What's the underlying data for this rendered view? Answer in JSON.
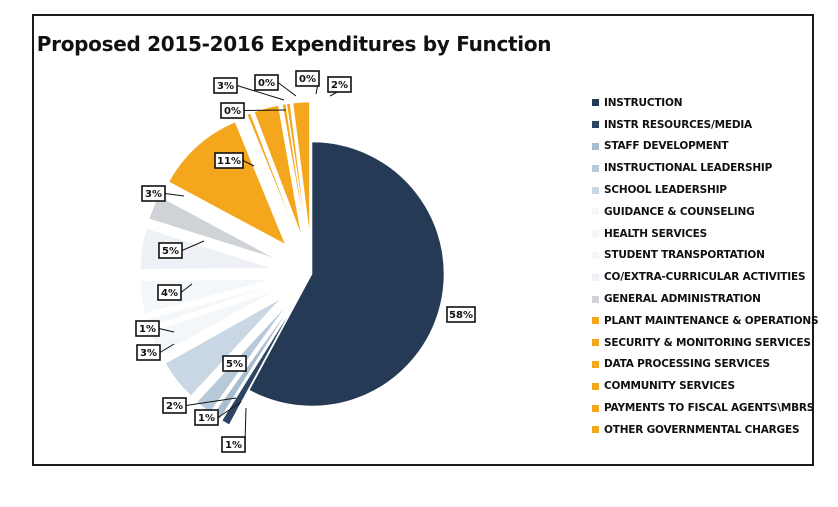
{
  "chart_data": {
    "type": "pie",
    "title": "Proposed 2015-2016 Expenditures by Function",
    "legend_position": "right",
    "slices": [
      {
        "name": "INSTRUCTION",
        "value": 58,
        "label": "58%",
        "color": "#243a55"
      },
      {
        "name": "INSTR RESOURCES/MEDIA",
        "value": 1,
        "label": "1%",
        "color": "#2c4563"
      },
      {
        "name": "STAFF DEVELOPMENT",
        "value": 1,
        "label": "1%",
        "color": "#a9bdd0"
      },
      {
        "name": "INSTRUCTIONAL LEADERSHIP",
        "value": 2,
        "label": "2%",
        "color": "#b8c9da"
      },
      {
        "name": "SCHOOL LEADERSHIP",
        "value": 5,
        "label": "5%",
        "color": "#c9d7e4"
      },
      {
        "name": "GUIDANCE & COUNSELING",
        "value": 3,
        "label": "3%",
        "color": "#f4f7fa"
      },
      {
        "name": "HEALTH SERVICES",
        "value": 1,
        "label": "1%",
        "color": "#f4f7fa"
      },
      {
        "name": "STUDENT TRANSPORTATION",
        "value": 4,
        "label": "4%",
        "color": "#f4f7fa"
      },
      {
        "name": "CO/EXTRA-CURRICULAR ACTIVITIES",
        "value": 5,
        "label": "5%",
        "color": "#eef2f6"
      },
      {
        "name": "GENERAL ADMINISTRATION",
        "value": 3,
        "label": "3%",
        "color": "#cfd3d7"
      },
      {
        "name": "PLANT MAINTENANCE & OPERATIONS",
        "value": 11,
        "label": "11%",
        "color": "#f4a71c"
      },
      {
        "name": "SECURITY & MONITORING SERVICES",
        "value": 0.4,
        "label": "0%",
        "color": "#f4a71c"
      },
      {
        "name": "DATA PROCESSING SERVICES",
        "value": 3,
        "label": "3%",
        "color": "#f4a71c"
      },
      {
        "name": "COMMUNITY SERVICES",
        "value": 0.4,
        "label": "0%",
        "color": "#f4a71c"
      },
      {
        "name": "PAYMENTS TO FISCAL AGENTS\\MBRS",
        "value": 0.4,
        "label": "0%",
        "color": "#f4a71c"
      },
      {
        "name": "OTHER GOVERNMENTAL CHARGES",
        "value": 2,
        "label": "2%",
        "color": "#f4a71c"
      }
    ]
  }
}
